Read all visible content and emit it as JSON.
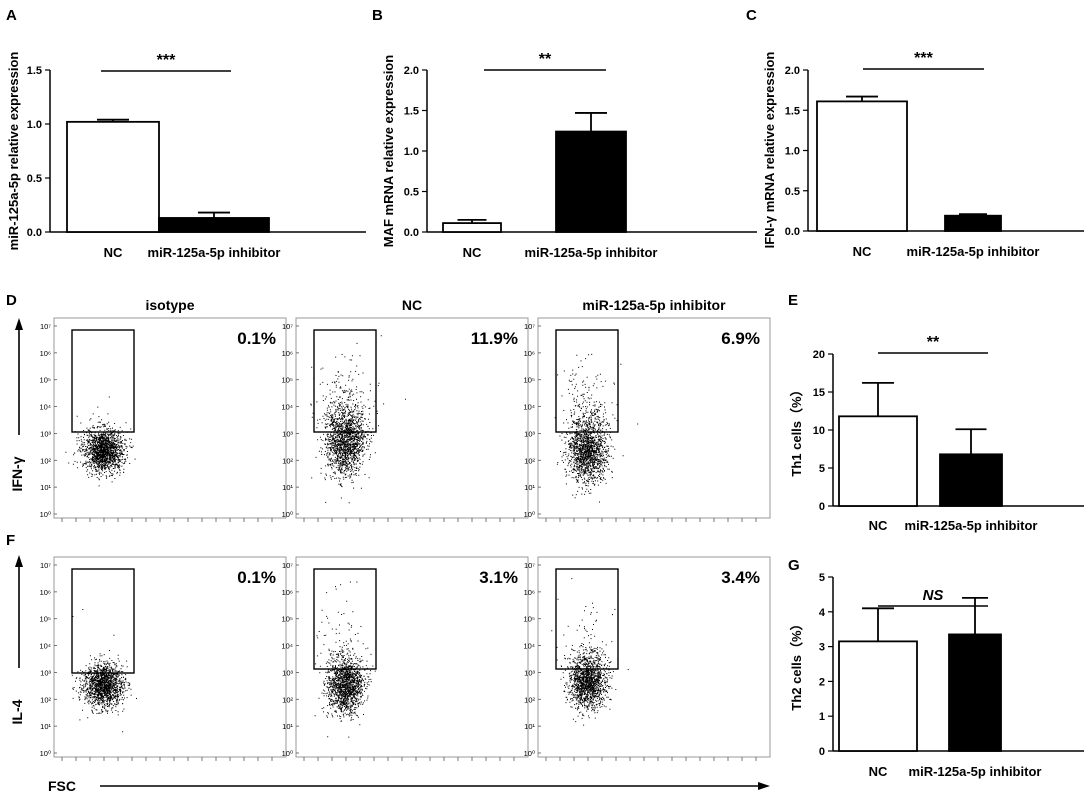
{
  "panel_letters": {
    "A": "A",
    "B": "B",
    "C": "C",
    "D": "D",
    "E": "E",
    "F": "F",
    "G": "G"
  },
  "chart_data": [
    {
      "id": "A",
      "type": "bar",
      "ylabel": "miR-125a-5p relative expression",
      "categories": [
        "NC",
        "miR-125a-5p inhibitor"
      ],
      "values": [
        1.02,
        0.13
      ],
      "errors": [
        0.02,
        0.05
      ],
      "fills": [
        "#ffffff",
        "#000000"
      ],
      "ylim": [
        0,
        1.5
      ],
      "yticks": [
        0.0,
        0.5,
        1.0,
        1.5
      ],
      "ytick_labels": [
        "0.0",
        "0.5",
        "1.0",
        "1.5"
      ],
      "significance": "***"
    },
    {
      "id": "B",
      "type": "bar",
      "ylabel": "MAF mRNA relative expression",
      "categories": [
        "NC",
        "miR-125a-5p inhibitor"
      ],
      "values": [
        0.11,
        1.24
      ],
      "errors": [
        0.04,
        0.23
      ],
      "fills": [
        "#ffffff",
        "#000000"
      ],
      "ylim": [
        0,
        2.0
      ],
      "yticks": [
        0.0,
        0.5,
        1.0,
        1.5,
        2.0
      ],
      "ytick_labels": [
        "0.0",
        "0.5",
        "1.0",
        "1.5",
        "2.0"
      ],
      "significance": "**"
    },
    {
      "id": "C",
      "type": "bar",
      "ylabel": "IFN-γ mRNA relative expression",
      "categories": [
        "NC",
        "miR-125a-5p inhibitor"
      ],
      "values": [
        1.61,
        0.19
      ],
      "errors": [
        0.06,
        0.02
      ],
      "fills": [
        "#ffffff",
        "#000000"
      ],
      "ylim": [
        0,
        2.0
      ],
      "yticks": [
        0.0,
        0.5,
        1.0,
        1.5,
        2.0
      ],
      "ytick_labels": [
        "0.0",
        "0.5",
        "1.0",
        "1.5",
        "2.0"
      ],
      "significance": "***"
    },
    {
      "id": "E",
      "type": "bar",
      "ylabel": "Th1 cells（%）",
      "categories": [
        "NC",
        "miR-125a-5p inhibitor"
      ],
      "values": [
        11.8,
        6.8
      ],
      "errors": [
        4.4,
        3.3
      ],
      "fills": [
        "#ffffff",
        "#000000"
      ],
      "ylim": [
        0,
        20
      ],
      "yticks": [
        0,
        5,
        10,
        15,
        20
      ],
      "ytick_labels": [
        "0",
        "5",
        "10",
        "15",
        "20"
      ],
      "significance": "**"
    },
    {
      "id": "G",
      "type": "bar",
      "ylabel": "Th2 cells（%）",
      "categories": [
        "NC",
        "miR-125a-5p inhibitor"
      ],
      "values": [
        3.15,
        3.35
      ],
      "errors": [
        0.95,
        1.05
      ],
      "fills": [
        "#ffffff",
        "#000000"
      ],
      "ylim": [
        0,
        5
      ],
      "yticks": [
        0,
        1,
        2,
        3,
        4,
        5
      ],
      "ytick_labels": [
        "0",
        "1",
        "2",
        "3",
        "4",
        "5"
      ],
      "significance": "NS"
    },
    {
      "id": "flow",
      "type": "scatter",
      "column_titles": [
        "isotype",
        "NC",
        "miR-125a-5p inhibitor"
      ],
      "row_axis_labels": [
        "IFN-γ",
        "IL-4"
      ],
      "x_axis_label": "FSC",
      "y_tick_labels": [
        "10⁰",
        "10¹",
        "10²",
        "10³",
        "10⁴",
        "10⁵",
        "10⁶",
        "10⁷"
      ],
      "percentages": [
        [
          "0.1%",
          "11.9%",
          "6.9%"
        ],
        [
          "0.1%",
          "3.1%",
          "3.4%"
        ]
      ]
    }
  ]
}
